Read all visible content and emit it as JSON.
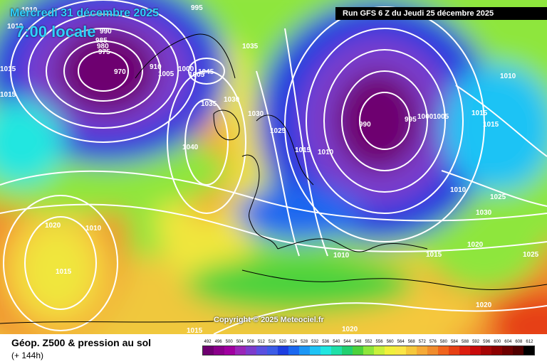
{
  "header": {
    "date": "Mercredi 31 décembre 2025",
    "time": "7:00 locale",
    "run": "Run GFS 6 Z du Jeudi 25 décembre 2025"
  },
  "copyright": "Copyright © 2025 Meteociel.fr",
  "footer": {
    "title": "Géop. Z500 & pression au sol",
    "step": "(+ 144h)"
  },
  "legend": {
    "values": [
      "492",
      "496",
      "500",
      "504",
      "508",
      "512",
      "516",
      "520",
      "524",
      "528",
      "532",
      "536",
      "540",
      "544",
      "548",
      "552",
      "556",
      "560",
      "564",
      "568",
      "572",
      "576",
      "580",
      "584",
      "588",
      "592",
      "596",
      "600",
      "604",
      "608",
      "612"
    ],
    "colors": [
      "#6e0070",
      "#8a008a",
      "#a000a0",
      "#9a26b8",
      "#7c3ccc",
      "#5a50e0",
      "#3c5ce6",
      "#1d3ee0",
      "#1b68f0",
      "#1c96f5",
      "#1fc3f5",
      "#21e6e0",
      "#20e0a8",
      "#22d070",
      "#4cd23c",
      "#8ee63c",
      "#c8f03c",
      "#f0f03c",
      "#fae646",
      "#f5c83c",
      "#f5aa37",
      "#f08c2d",
      "#f0641e",
      "#e64014",
      "#dc1e0f",
      "#c80a0a",
      "#a50505",
      "#8c0000",
      "#6e0000",
      "#500000",
      "#000000"
    ]
  },
  "isobars": [
    "1010",
    "1010",
    "990",
    "985",
    "980",
    "975",
    "970",
    "910",
    "1005",
    "1015",
    "995",
    "1000",
    "1005",
    "1035",
    "1045",
    "1035",
    "1030",
    "1030",
    "1025",
    "1040",
    "1015",
    "1015",
    "1020",
    "1010",
    "990",
    "995",
    "1000",
    "1005",
    "1010",
    "1015",
    "1015",
    "1010",
    "1010",
    "1025",
    "1030",
    "1020",
    "1015",
    "1025",
    "1020",
    "1010",
    "1015",
    "1020",
    "1015"
  ]
}
